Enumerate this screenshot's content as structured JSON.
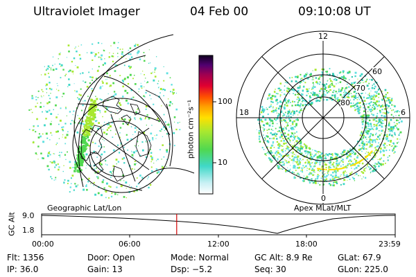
{
  "header": {
    "instrument": "Ultraviolet Imager",
    "date": "04 Feb 00",
    "time": "09:10:08 UT"
  },
  "left_panel": {
    "label": "Geographic Lat/Lon"
  },
  "right_panel": {
    "label": "Apex  MLat/MLT",
    "mlt_labels": [
      "12",
      "18",
      "6",
      "0"
    ],
    "mlat_labels": [
      "60",
      "70",
      "80"
    ]
  },
  "colorbar": {
    "unit": "photon cm⁻²s⁻¹",
    "ticks": [
      "100",
      "10"
    ]
  },
  "timeline": {
    "axis_title": "GC Alt",
    "y_ticks": [
      "9.0",
      "1.8"
    ],
    "x_ticks": [
      "00:00",
      "06:00",
      "12:00",
      "18:00",
      "23:59"
    ],
    "current_time_fraction": 0.382
  },
  "info": {
    "row1": [
      "Flt: 1356",
      "Door: Open",
      "Mode: Normal",
      "GC Alt: 8.9 Re",
      "GLat:  67.9"
    ],
    "row2": [
      "IP: 36.0",
      "Gain: 13",
      "Dsp:  −5.2",
      "Seq: 30",
      "GLon: 225.0"
    ]
  }
}
